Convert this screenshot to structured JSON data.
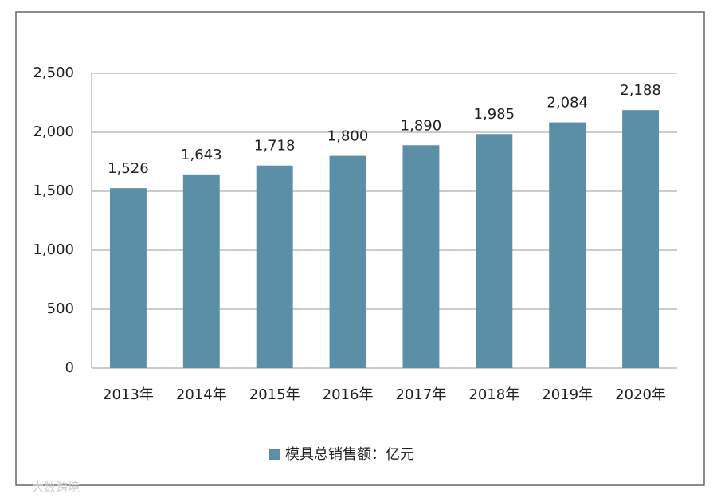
{
  "chart_data": {
    "type": "bar",
    "categories": [
      "2013年",
      "2014年",
      "2015年",
      "2016年",
      "2017年",
      "2018年",
      "2019年",
      "2020年"
    ],
    "series": [
      {
        "name": "模具总销售额：亿元",
        "color": "#5b8fa8",
        "values": [
          1526,
          1643,
          1718,
          1800,
          1890,
          1985,
          2084,
          2188
        ],
        "value_labels": [
          "1,526",
          "1,643",
          "1,718",
          "1,800",
          "1,890",
          "1,985",
          "2,084",
          "2,188"
        ]
      }
    ],
    "ylim": [
      0,
      2500
    ],
    "yticks": [
      0,
      500,
      {
        "value": 1000,
        "label": "1,000"
      },
      {
        "value": 1500,
        "label": "1,500"
      },
      {
        "value": 2000,
        "label": "2,000"
      },
      {
        "value": 2500,
        "label": "2,500"
      }
    ],
    "grid": true,
    "legend": "bottom",
    "watermark": "大数跨境"
  }
}
